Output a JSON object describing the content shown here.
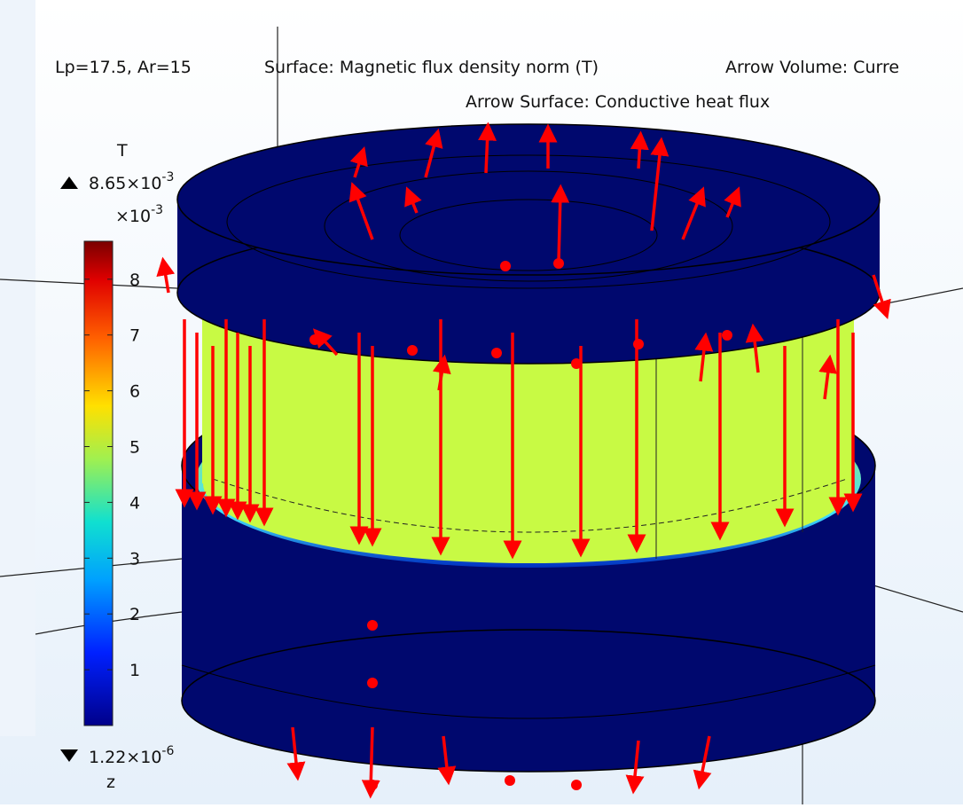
{
  "header": {
    "parameters": "Lp=17.5, Ar=15",
    "surface": "Surface: Magnetic flux density norm (T)",
    "arrow_volume": "Arrow Volume: Curre",
    "arrow_surface": "Arrow Surface: Conductive heat flux"
  },
  "legend": {
    "unit": "T",
    "max": {
      "base": "8.65×10",
      "exponent": "-3"
    },
    "scale": {
      "base": "×10",
      "exponent": "-3"
    },
    "ticks": [
      1,
      2,
      3,
      4,
      5,
      6,
      7,
      8
    ],
    "min": {
      "base": "1.22×10",
      "exponent": "-6"
    }
  },
  "axis_label": "z"
}
